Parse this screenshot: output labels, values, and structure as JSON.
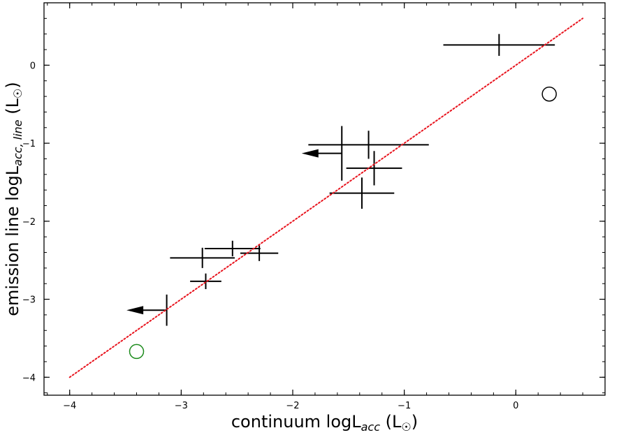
{
  "chart_data": {
    "type": "scatter",
    "xlabel": {
      "main": "continuum logL",
      "sub": "acc",
      "unit": " (L",
      "sun": "☉",
      "close": ")"
    },
    "ylabel": {
      "main": "emission line logL",
      "sub": "acc, line",
      "unit": " (L",
      "sun": "☉",
      "close": ")"
    },
    "xlim": [
      -4.23,
      0.8
    ],
    "ylim": [
      -4.23,
      0.8
    ],
    "xticks": [
      -4,
      -3,
      -2,
      -1,
      0
    ],
    "yticks": [
      -4,
      -3,
      -2,
      -1,
      0
    ],
    "xtick_labels": [
      "−4",
      "−3",
      "−2",
      "−1",
      "0"
    ],
    "ytick_labels": [
      "−4",
      "−3",
      "−2",
      "−1",
      "0"
    ],
    "minor_tick_step": 0.2,
    "grid": false,
    "series": [
      {
        "kind": "errorbar",
        "color": "#000000",
        "points": [
          {
            "x": -0.15,
            "y": 0.26,
            "xerr": [
              0.5,
              0.5
            ],
            "yerr": [
              0.14,
              0.14
            ]
          },
          {
            "x": -1.32,
            "y": -1.02,
            "xerr": [
              0.54,
              0.54
            ],
            "yerr": [
              0.18,
              0.18
            ]
          },
          {
            "x": -1.56,
            "y": -1.13,
            "xerr": [
              0.0,
              0.0
            ],
            "yerr": [
              0.35,
              0.35
            ],
            "upper_limit_x": true
          },
          {
            "x": -1.27,
            "y": -1.32,
            "xerr": [
              0.25,
              0.25
            ],
            "yerr": [
              0.22,
              0.22
            ]
          },
          {
            "x": -1.38,
            "y": -1.64,
            "xerr": [
              0.29,
              0.29
            ],
            "yerr": [
              0.2,
              0.2
            ]
          },
          {
            "x": -2.54,
            "y": -2.35,
            "xerr": [
              0.25,
              0.25
            ],
            "yerr": [
              0.1,
              0.1
            ]
          },
          {
            "x": -2.3,
            "y": -2.41,
            "xerr": [
              0.17,
              0.17
            ],
            "yerr": [
              0.1,
              0.1
            ]
          },
          {
            "x": -2.81,
            "y": -2.47,
            "xerr": [
              0.29,
              0.29
            ],
            "yerr": [
              0.13,
              0.13
            ]
          },
          {
            "x": -2.78,
            "y": -2.77,
            "xerr": [
              0.14,
              0.14
            ],
            "yerr": [
              0.1,
              0.1
            ]
          },
          {
            "x": -3.13,
            "y": -3.14,
            "xerr": [
              0.0,
              0.0
            ],
            "yerr": [
              0.2,
              0.2
            ],
            "upper_limit_x": true
          }
        ]
      },
      {
        "kind": "open-circle",
        "color": "#000000",
        "points": [
          {
            "x": 0.3,
            "y": -0.37
          }
        ]
      },
      {
        "kind": "open-circle",
        "color": "#1a8a1a",
        "points": [
          {
            "x": -3.4,
            "y": -3.67
          }
        ]
      },
      {
        "kind": "line",
        "style": "dotted",
        "color": "#e8141e",
        "points": [
          {
            "x": -4.0,
            "y": -4.0
          },
          {
            "x": 0.6,
            "y": 0.6
          }
        ]
      }
    ]
  }
}
